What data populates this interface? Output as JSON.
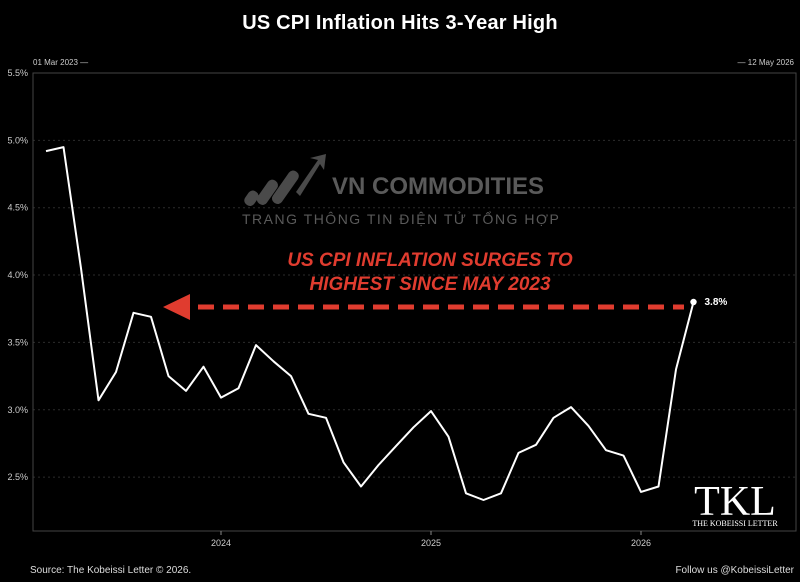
{
  "chart_data": {
    "type": "line",
    "title": "US CPI Inflation Hits 3-Year High",
    "date_start": "01 Mar 2023 —",
    "date_end": "— 12 May 2026",
    "x": [
      "2023-03",
      "2023-04",
      "2023-05",
      "2023-06",
      "2023-07",
      "2023-08",
      "2023-09",
      "2023-10",
      "2023-11",
      "2023-12",
      "2024-01",
      "2024-02",
      "2024-03",
      "2024-04",
      "2024-05",
      "2024-06",
      "2024-07",
      "2024-08",
      "2024-09",
      "2024-10",
      "2024-11",
      "2024-12",
      "2025-01",
      "2025-02",
      "2025-03",
      "2025-04",
      "2025-05",
      "2025-06",
      "2025-07",
      "2025-08",
      "2025-09",
      "2025-10",
      "2025-11",
      "2025-12",
      "2026-01",
      "2026-02",
      "2026-03",
      "2026-04"
    ],
    "values": [
      4.92,
      4.95,
      4.05,
      3.07,
      3.28,
      3.72,
      3.69,
      3.25,
      3.14,
      3.32,
      3.09,
      3.16,
      3.48,
      3.36,
      3.25,
      2.97,
      2.94,
      2.61,
      2.43,
      2.59,
      2.73,
      2.87,
      2.99,
      2.8,
      2.38,
      2.33,
      2.38,
      2.68,
      2.74,
      2.94,
      3.02,
      2.88,
      2.7,
      2.66,
      2.39,
      2.43,
      3.3,
      3.8
    ],
    "xticks": [
      "2024",
      "2025",
      "2026"
    ],
    "yticks": [
      "2.5%",
      "3.0%",
      "3.5%",
      "4.0%",
      "4.5%",
      "5.0%",
      "5.5%"
    ],
    "ylim": [
      2.1,
      5.5
    ],
    "last_label": "3.8%",
    "annotation": [
      "US CPI INFLATION SURGES TO",
      "HIGHEST SINCE MAY 2023"
    ],
    "annotation_color": "#e03c2f",
    "line_color": "#ffffff",
    "grid": true
  },
  "watermark": {
    "brand": "VN COMMODITIES",
    "tagline": "TRANG THÔNG TIN ĐIỆN TỬ TỔNG HỢP"
  },
  "logo": {
    "mark": "TKL",
    "name": "THE KOBEISSI LETTER"
  },
  "footer": {
    "source": "Source: The Kobeissi Letter © 2026.",
    "follow": "Follow us @KobeissiLetter"
  }
}
